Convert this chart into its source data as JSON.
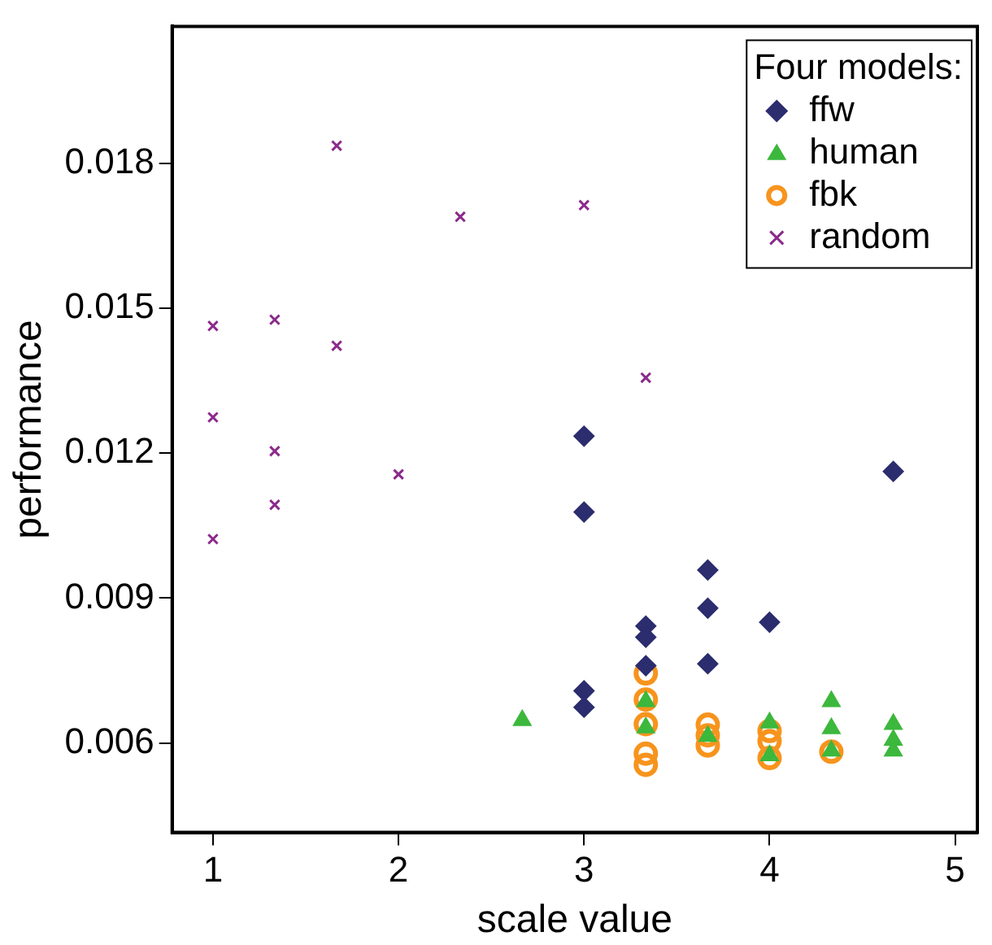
{
  "chart_data": {
    "type": "scatter",
    "xlabel": "scale value",
    "ylabel": "performance",
    "legend_title": "Four models:",
    "legend": "top right",
    "grid": false,
    "xlim": [
      0.78,
      5.12
    ],
    "xticks": [
      1,
      2,
      3,
      4,
      5
    ],
    "ylim": [
      0.00415,
      0.02083
    ],
    "yticks": [
      0.006,
      0.009,
      0.012,
      0.015,
      0.018
    ],
    "series": [
      {
        "name": "ffw",
        "color": "#2b2d6e",
        "marker": "diamond",
        "x": [
          3,
          3,
          3,
          3,
          3.333,
          3.333,
          3.333,
          3.667,
          3.667,
          3.667,
          4,
          4.667
        ],
        "values": [
          0.01235,
          0.01078,
          0.00708,
          0.00674,
          0.00842,
          0.00819,
          0.0076,
          0.00958,
          0.00879,
          0.00764,
          0.0085,
          0.01162
        ]
      },
      {
        "name": "human",
        "color": "#3cb83c",
        "marker": "triangle",
        "x": [
          2.667,
          3.333,
          3.333,
          3.667,
          4,
          4,
          4.333,
          4.333,
          4.333,
          4.667,
          4.667,
          4.667
        ],
        "values": [
          0.00647,
          0.00686,
          0.00632,
          0.00614,
          0.00642,
          0.00574,
          0.00686,
          0.0063,
          0.00584,
          0.00639,
          0.00606,
          0.00584
        ]
      },
      {
        "name": "fbk",
        "color": "#f7941d",
        "marker": "circle",
        "x": [
          3.333,
          3.333,
          3.333,
          3.333,
          3.333,
          3.667,
          3.667,
          3.667,
          4,
          4,
          4,
          4.333
        ],
        "values": [
          0.00744,
          0.0069,
          0.00639,
          0.00578,
          0.00555,
          0.00638,
          0.00616,
          0.00595,
          0.00625,
          0.00604,
          0.00569,
          0.00582
        ]
      },
      {
        "name": "random",
        "color": "#8b2a8b",
        "marker": "cross",
        "x": [
          1,
          1,
          1,
          1.333,
          1.333,
          1.333,
          1.667,
          1.667,
          2,
          2.333,
          3,
          3.333
        ],
        "values": [
          0.01463,
          0.01274,
          0.01022,
          0.01476,
          0.01204,
          0.01093,
          0.01836,
          0.01422,
          0.01156,
          0.01689,
          0.01713,
          0.01356
        ]
      }
    ]
  }
}
